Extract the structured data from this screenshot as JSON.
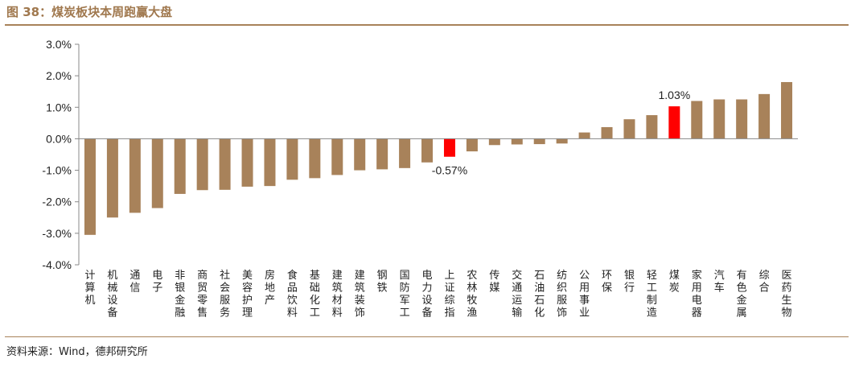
{
  "figure": {
    "title": "图 38：煤炭板块本周跑赢大盘",
    "source": "资料来源：Wind，德邦研究所"
  },
  "colors": {
    "bar": "#a8825a",
    "highlight": "#ff0000",
    "axis": "#888888",
    "title": "#a0784e"
  },
  "chart_data": {
    "type": "bar",
    "title": "",
    "xlabel": "",
    "ylabel": "",
    "ylim": [
      -4.0,
      3.0
    ],
    "yticks": [
      3.0,
      2.0,
      1.0,
      0.0,
      -1.0,
      -2.0,
      -3.0,
      -4.0
    ],
    "ytick_labels": [
      "3.0%",
      "2.0%",
      "1.0%",
      "0.0%",
      "-1.0%",
      "-2.0%",
      "-3.0%",
      "-4.0%"
    ],
    "grid": false,
    "legend": "none",
    "categories": [
      "计算机",
      "机械设备",
      "通信",
      "电子",
      "非银金融",
      "商贸零售",
      "社会服务",
      "美容护理",
      "房地产",
      "食品饮料",
      "基础化工",
      "建筑材料",
      "建筑装饰",
      "钢铁",
      "国防军工",
      "电力设备",
      "上证综指",
      "农林牧渔",
      "传媒",
      "交通运输",
      "石油石化",
      "纺织服饰",
      "公用事业",
      "环保",
      "银行",
      "轻工制造",
      "煤炭",
      "家用电器",
      "汽车",
      "有色金属",
      "综合",
      "医药生物"
    ],
    "values": [
      -3.05,
      -2.5,
      -2.35,
      -2.2,
      -1.75,
      -1.63,
      -1.62,
      -1.52,
      -1.5,
      -1.3,
      -1.25,
      -1.15,
      -1.0,
      -0.97,
      -0.93,
      -0.75,
      -0.57,
      -0.4,
      -0.2,
      -0.18,
      -0.17,
      -0.15,
      0.2,
      0.37,
      0.62,
      0.75,
      1.03,
      1.2,
      1.25,
      1.25,
      1.42,
      1.8
    ],
    "highlighted": [
      "上证综指",
      "煤炭"
    ],
    "data_labels": [
      {
        "category": "上证综指",
        "text": "-0.57%"
      },
      {
        "category": "煤炭",
        "text": "1.03%"
      }
    ]
  }
}
